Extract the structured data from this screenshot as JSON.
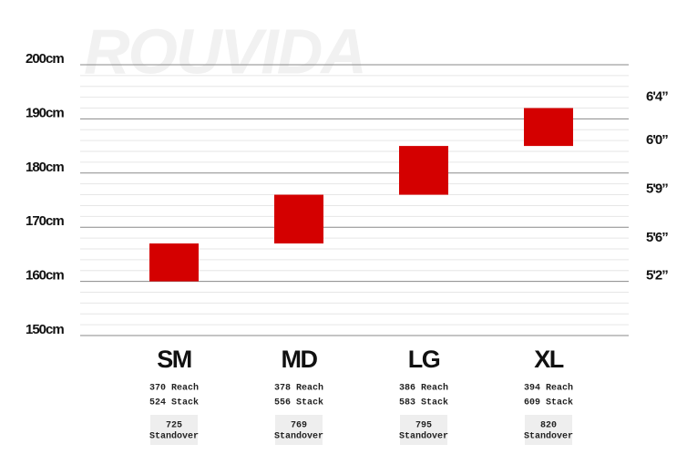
{
  "chart_data": {
    "type": "range-bar",
    "watermark": "ROUVIDA",
    "categories": [
      "SM",
      "MD",
      "LG",
      "XL"
    ],
    "low": [
      160,
      167,
      176,
      185
    ],
    "high": [
      167,
      176,
      185,
      192
    ],
    "color": "#d40000",
    "ylim": [
      150,
      200
    ],
    "yticks": [
      {
        "value": 150,
        "label": "150cm"
      },
      {
        "value": 160,
        "label": "160cm"
      },
      {
        "value": 170,
        "label": "170cm"
      },
      {
        "value": 180,
        "label": "180cm"
      },
      {
        "value": 190,
        "label": "190cm"
      },
      {
        "value": 200,
        "label": "200cm"
      }
    ],
    "y2lim": [
      150,
      200
    ],
    "y2ticks": [
      {
        "value": 161,
        "label": "5'2”"
      },
      {
        "value": 168,
        "label": "5'6”"
      },
      {
        "value": 177,
        "label": "5'9”"
      },
      {
        "value": 186,
        "label": "6'0”"
      },
      {
        "value": 194,
        "label": "6'4”"
      }
    ],
    "grid": true,
    "reach": [
      "370 Reach",
      "378 Reach",
      "386 Reach",
      "394 Reach"
    ],
    "stack": [
      "524 Stack",
      "556 Stack",
      "583 Stack",
      "609 Stack"
    ],
    "standover": [
      725,
      769,
      795,
      820
    ],
    "standover_label": "Standover"
  }
}
